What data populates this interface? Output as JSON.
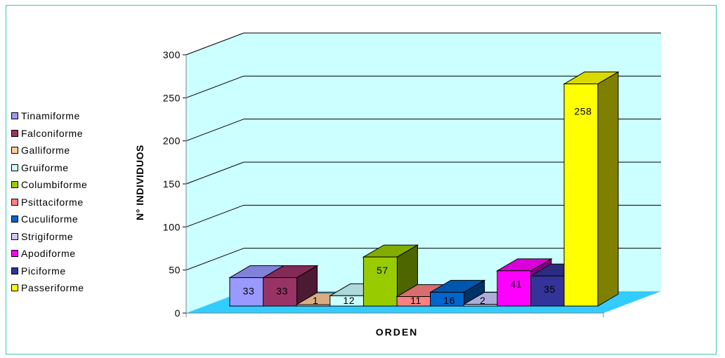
{
  "chart_data": {
    "type": "bar",
    "title": "",
    "xlabel": "ORDEN",
    "ylabel": "N° INDIVIDUOS",
    "ylim": [
      0,
      300
    ],
    "yticks": [
      "0",
      "50",
      "100",
      "150",
      "200",
      "250",
      "300"
    ],
    "grid": true,
    "legend_position": "left",
    "series": [
      {
        "name": "Tinamiforme",
        "value": 33,
        "label": "33",
        "color": "#9999ff"
      },
      {
        "name": "Falconiforme",
        "value": 33,
        "label": "33",
        "color": "#993366"
      },
      {
        "name": "Galliforme",
        "value": 1,
        "label": "1",
        "color": "#ffcc99"
      },
      {
        "name": "Gruiforme",
        "value": 12,
        "label": "12",
        "color": "#ccffff"
      },
      {
        "name": "Columbiforme",
        "value": 57,
        "label": "57",
        "color": "#99cc00"
      },
      {
        "name": "Psittaciforme",
        "value": 11,
        "label": "11",
        "color": "#ff8080"
      },
      {
        "name": "Cuculiforme",
        "value": 16,
        "label": "16",
        "color": "#0066cc"
      },
      {
        "name": "Strigiforme",
        "value": 2,
        "label": "2",
        "color": "#ccccff"
      },
      {
        "name": "Apodiforme",
        "value": 41,
        "label": "41",
        "color": "#ff00ff"
      },
      {
        "name": "Piciforme",
        "value": 35,
        "label": "35",
        "color": "#333399"
      },
      {
        "name": "Passeriforme",
        "value": 258,
        "label": "258",
        "color": "#ffff00"
      }
    ],
    "colors": {
      "wall": "#ccffff",
      "floor": "#33ccff",
      "frame": "#3cc6b4"
    }
  }
}
